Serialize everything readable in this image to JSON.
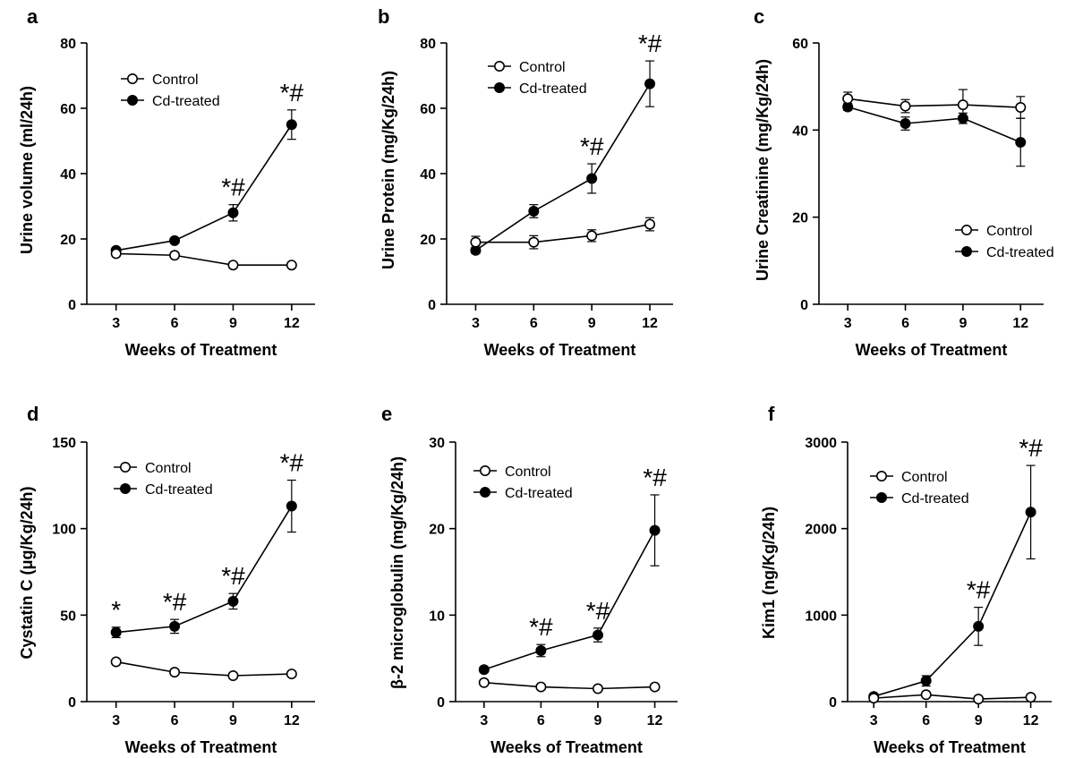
{
  "chart_data": [
    {
      "panel_label": "a",
      "type": "line",
      "x": [
        3,
        6,
        9,
        12
      ],
      "xticks": [
        "3",
        "6",
        "9",
        "12"
      ],
      "xlim": [
        1.5,
        13.2
      ],
      "yticks": [
        "0",
        "20",
        "40",
        "60",
        "80"
      ],
      "ylim": [
        0,
        80
      ],
      "xlabel": "Weeks of Treatment",
      "ylabel": "Urine volume (ml/24h)",
      "legend": [
        "Control",
        "Cd-treated"
      ],
      "legend_position": "top-left",
      "series": [
        {
          "name": "Control",
          "marker": "open-circle",
          "values": [
            15.5,
            15,
            12,
            12
          ],
          "errors": [
            0.8,
            0.8,
            0.6,
            0.6
          ]
        },
        {
          "name": "Cd-treated",
          "marker": "filled-circle",
          "values": [
            16.5,
            19.5,
            28,
            55
          ],
          "errors": [
            0.8,
            0.8,
            2.5,
            4.5
          ]
        }
      ],
      "annotations": [
        {
          "x": 9,
          "y": 28,
          "text": "*#"
        },
        {
          "x": 12,
          "y": 55,
          "text": "*#"
        }
      ]
    },
    {
      "panel_label": "b",
      "type": "line",
      "x": [
        3,
        6,
        9,
        12
      ],
      "xticks": [
        "3",
        "6",
        "9",
        "12"
      ],
      "xlim": [
        1.5,
        13.2
      ],
      "yticks": [
        "0",
        "20",
        "40",
        "60",
        "80"
      ],
      "ylim": [
        0,
        80
      ],
      "xlabel": "Weeks of Treatment",
      "ylabel": "Urine Protein (mg/Kg/24h)",
      "legend": [
        "Control",
        "Cd-treated"
      ],
      "legend_position": "top-left",
      "series": [
        {
          "name": "Control",
          "marker": "open-circle",
          "values": [
            19,
            19,
            21,
            24.5
          ],
          "errors": [
            1.8,
            2,
            1.8,
            2
          ]
        },
        {
          "name": "Cd-treated",
          "marker": "filled-circle",
          "values": [
            16.5,
            28.5,
            38.5,
            67.5
          ],
          "errors": [
            1,
            2,
            4.5,
            7
          ]
        }
      ],
      "annotations": [
        {
          "x": 9,
          "y": 38.5,
          "text": "*#"
        },
        {
          "x": 12,
          "y": 67.5,
          "text": "*#"
        }
      ]
    },
    {
      "panel_label": "c",
      "type": "line",
      "x": [
        3,
        6,
        9,
        12
      ],
      "xticks": [
        "3",
        "6",
        "9",
        "12"
      ],
      "xlim": [
        1.5,
        13.2
      ],
      "yticks": [
        "0",
        "20",
        "40",
        "60"
      ],
      "ylim": [
        0,
        60
      ],
      "xlabel": "Weeks of Treatment",
      "ylabel": "Urine Creatinine (mg/Kg/24h)",
      "legend": [
        "Control",
        "Cd-treated"
      ],
      "legend_position": "center-right",
      "series": [
        {
          "name": "Control",
          "marker": "open-circle",
          "values": [
            47.2,
            45.5,
            45.8,
            45.2
          ],
          "errors": [
            1.5,
            1.5,
            3.5,
            2.5
          ]
        },
        {
          "name": "Cd-treated",
          "marker": "filled-circle",
          "values": [
            45.3,
            41.5,
            42.7,
            37.2
          ],
          "errors": [
            0.8,
            1.5,
            1.2,
            5.5
          ]
        }
      ],
      "annotations": []
    },
    {
      "panel_label": "d",
      "type": "line",
      "x": [
        3,
        6,
        9,
        12
      ],
      "xticks": [
        "3",
        "6",
        "9",
        "12"
      ],
      "xlim": [
        1.5,
        13.2
      ],
      "yticks": [
        "0",
        "50",
        "100",
        "150"
      ],
      "ylim": [
        0,
        150
      ],
      "xlabel": "Weeks of Treatment",
      "ylabel": "Cystatin C (μg/Kg/24h)",
      "legend": [
        "Control",
        "Cd-treated"
      ],
      "legend_position": "top-left",
      "series": [
        {
          "name": "Control",
          "marker": "open-circle",
          "values": [
            23,
            17,
            15,
            16
          ],
          "errors": [
            1,
            1,
            1,
            1
          ]
        },
        {
          "name": "Cd-treated",
          "marker": "filled-circle",
          "values": [
            40,
            43.5,
            58,
            113
          ],
          "errors": [
            3,
            4,
            4.5,
            15
          ]
        }
      ],
      "annotations": [
        {
          "x": 3,
          "y": 40,
          "text": "*"
        },
        {
          "x": 6,
          "y": 43.5,
          "text": "*#"
        },
        {
          "x": 9,
          "y": 58,
          "text": "*#"
        },
        {
          "x": 12,
          "y": 113,
          "text": "*#"
        }
      ]
    },
    {
      "panel_label": "e",
      "type": "line",
      "x": [
        3,
        6,
        9,
        12
      ],
      "xticks": [
        "3",
        "6",
        "9",
        "12"
      ],
      "xlim": [
        1.5,
        13.2
      ],
      "yticks": [
        "0",
        "10",
        "20",
        "30"
      ],
      "ylim": [
        0,
        30
      ],
      "xlabel": "Weeks of Treatment",
      "ylabel": "β-2 microglobulin (mg/Kg/24h)",
      "legend": [
        "Control",
        "Cd-treated"
      ],
      "legend_position": "top-left",
      "series": [
        {
          "name": "Control",
          "marker": "open-circle",
          "values": [
            2.2,
            1.7,
            1.5,
            1.7
          ],
          "errors": [
            0.2,
            0.2,
            0.2,
            0.2
          ]
        },
        {
          "name": "Cd-treated",
          "marker": "filled-circle",
          "values": [
            3.7,
            5.9,
            7.7,
            19.8
          ],
          "errors": [
            0.3,
            0.7,
            0.8,
            4.1
          ]
        }
      ],
      "annotations": [
        {
          "x": 6,
          "y": 5.9,
          "text": "*#"
        },
        {
          "x": 9,
          "y": 7.7,
          "text": "*#"
        },
        {
          "x": 12,
          "y": 19.8,
          "text": "*#"
        }
      ]
    },
    {
      "panel_label": "f",
      "type": "line",
      "x": [
        3,
        6,
        9,
        12
      ],
      "xticks": [
        "3",
        "6",
        "9",
        "12"
      ],
      "xlim": [
        1.5,
        13.2
      ],
      "yticks": [
        "0",
        "1000",
        "2000",
        "3000"
      ],
      "ylim": [
        0,
        3000
      ],
      "xlabel": "Weeks of Treatment",
      "ylabel": "Kim1 (ng/Kg/24h)",
      "legend": [
        "Control",
        "Cd-treated"
      ],
      "legend_position": "top-left",
      "series": [
        {
          "name": "Control",
          "marker": "open-circle",
          "values": [
            40,
            80,
            30,
            50
          ],
          "errors": [
            10,
            20,
            10,
            10
          ]
        },
        {
          "name": "Cd-treated",
          "marker": "filled-circle",
          "values": [
            60,
            240,
            870,
            2190
          ],
          "errors": [
            20,
            60,
            220,
            540
          ]
        }
      ],
      "annotations": [
        {
          "x": 9,
          "y": 870,
          "text": "*#"
        },
        {
          "x": 12,
          "y": 2190,
          "text": "*#"
        }
      ]
    }
  ]
}
